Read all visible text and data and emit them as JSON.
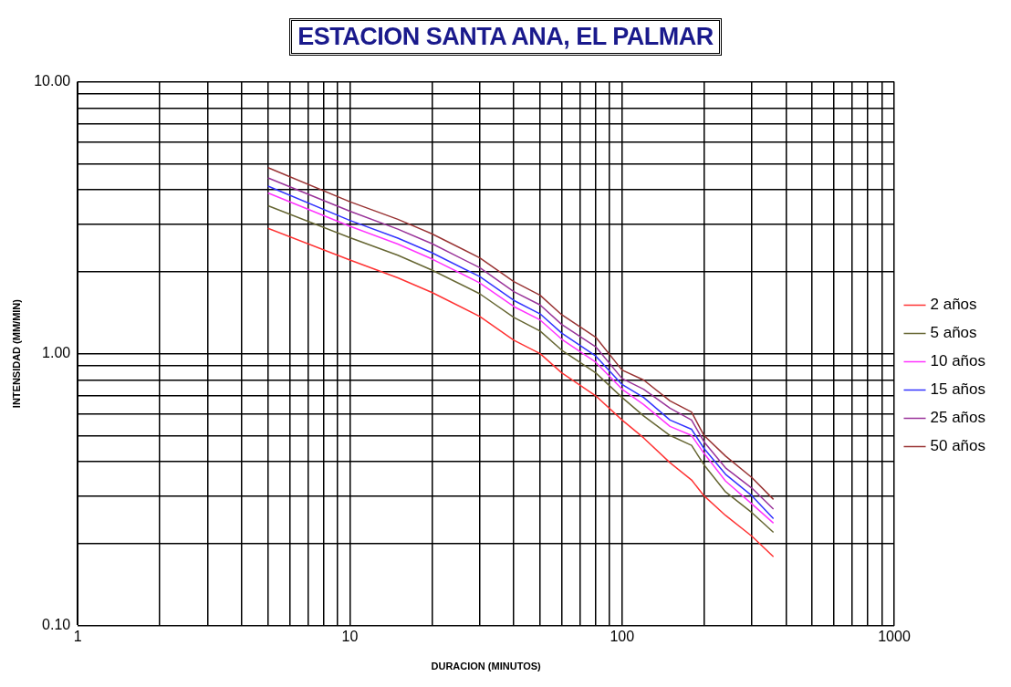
{
  "chart_data": {
    "type": "line",
    "title": "ESTACION SANTA ANA, EL PALMAR",
    "xlabel": "DURACION (MINUTOS)",
    "ylabel": "INTENSIDAD (MM/MIN)",
    "log": "xy",
    "grid": true,
    "legend": "right",
    "marker": "none",
    "line_style": "solid",
    "x": [
      5,
      10,
      15,
      20,
      30,
      40,
      50,
      60,
      80,
      100,
      120,
      150,
      180,
      200,
      240,
      300,
      360
    ],
    "xlim": [
      1,
      1000
    ],
    "ylim": [
      0.1,
      10
    ],
    "xticks": [
      1,
      {
        "value": 2,
        "label": null
      },
      {
        "value": 3,
        "label": null
      },
      {
        "value": 4,
        "label": null
      },
      {
        "value": 5,
        "label": null
      },
      {
        "value": 6,
        "label": null
      },
      {
        "value": 7,
        "label": null
      },
      {
        "value": 8,
        "label": null
      },
      {
        "value": 9,
        "label": null
      },
      10,
      {
        "value": 20,
        "label": null
      },
      {
        "value": 30,
        "label": null
      },
      {
        "value": 40,
        "label": null
      },
      {
        "value": 50,
        "label": null
      },
      {
        "value": 60,
        "label": null
      },
      {
        "value": 70,
        "label": null
      },
      {
        "value": 80,
        "label": null
      },
      {
        "value": 90,
        "label": null
      },
      100,
      {
        "value": 200,
        "label": null
      },
      {
        "value": 300,
        "label": null
      },
      {
        "value": 400,
        "label": null
      },
      {
        "value": 500,
        "label": null
      },
      {
        "value": 600,
        "label": null
      },
      {
        "value": 700,
        "label": null
      },
      {
        "value": 800,
        "label": null
      },
      {
        "value": 900,
        "label": null
      },
      1000
    ],
    "yticks": [
      {
        "value": 0.1,
        "label": "0.10"
      },
      {
        "value": 0.2,
        "label": null
      },
      {
        "value": 0.3,
        "label": null
      },
      {
        "value": 0.4,
        "label": null
      },
      {
        "value": 0.5,
        "label": null
      },
      {
        "value": 0.6,
        "label": null
      },
      {
        "value": 0.7,
        "label": null
      },
      {
        "value": 0.8,
        "label": null
      },
      {
        "value": 0.9,
        "label": null
      },
      {
        "value": 1,
        "label": "1.00"
      },
      {
        "value": 2,
        "label": null
      },
      {
        "value": 3,
        "label": null
      },
      {
        "value": 4,
        "label": null
      },
      {
        "value": 5,
        "label": null
      },
      {
        "value": 6,
        "label": null
      },
      {
        "value": 7,
        "label": null
      },
      {
        "value": 8,
        "label": null
      },
      {
        "value": 9,
        "label": null
      },
      {
        "value": 10,
        "label": "10.00"
      }
    ],
    "series": [
      {
        "name": "2 años",
        "color": "#ff3333",
        "values": [
          2.89,
          2.21,
          1.9,
          1.68,
          1.37,
          1.12,
          1.0,
          0.85,
          0.7,
          0.57,
          0.49,
          0.397,
          0.343,
          0.3,
          0.254,
          0.213,
          0.179
        ]
      },
      {
        "name": "5 años",
        "color": "#666633",
        "values": [
          3.5,
          2.67,
          2.3,
          2.03,
          1.66,
          1.36,
          1.21,
          1.03,
          0.85,
          0.69,
          0.59,
          0.5,
          0.46,
          0.39,
          0.31,
          0.26,
          0.22
        ]
      },
      {
        "name": "10 años",
        "color": "#ff33ff",
        "values": [
          3.9,
          2.94,
          2.53,
          2.23,
          1.82,
          1.49,
          1.33,
          1.13,
          0.93,
          0.74,
          0.65,
          0.54,
          0.5,
          0.43,
          0.34,
          0.28,
          0.238
        ]
      },
      {
        "name": "15 años",
        "color": "#3333ff",
        "values": [
          4.13,
          3.09,
          2.66,
          2.35,
          1.92,
          1.57,
          1.4,
          1.19,
          0.98,
          0.77,
          0.69,
          0.57,
          0.527,
          0.448,
          0.36,
          0.3,
          0.247
        ]
      },
      {
        "name": "25 años",
        "color": "#993399",
        "values": [
          4.43,
          3.34,
          2.87,
          2.54,
          2.07,
          1.69,
          1.51,
          1.28,
          1.06,
          0.81,
          0.74,
          0.63,
          0.57,
          0.474,
          0.38,
          0.32,
          0.268
        ]
      },
      {
        "name": "50 años",
        "color": "#993333",
        "values": [
          4.83,
          3.62,
          3.12,
          2.76,
          2.25,
          1.84,
          1.64,
          1.39,
          1.15,
          0.87,
          0.8,
          0.67,
          0.61,
          0.5,
          0.42,
          0.35,
          0.291
        ]
      }
    ]
  }
}
